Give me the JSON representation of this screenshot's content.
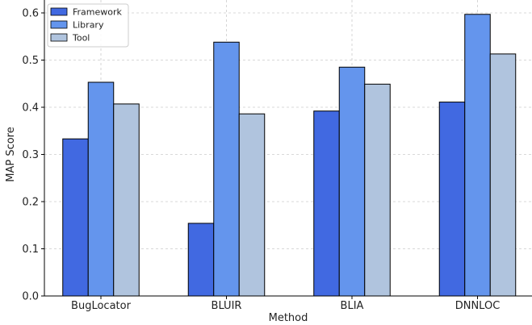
{
  "chart_data": {
    "type": "bar",
    "title": "",
    "xlabel": "Method",
    "ylabel": "MAP Score",
    "categories": [
      "BugLocator",
      "BLUIR",
      "BLIA",
      "DNNLOC"
    ],
    "series": [
      {
        "name": "Framework",
        "color": "#4169e1",
        "values": [
          0.333,
          0.154,
          0.392,
          0.411
        ]
      },
      {
        "name": "Library",
        "color": "#6495ed",
        "values": [
          0.453,
          0.538,
          0.485,
          0.597
        ]
      },
      {
        "name": "Tool",
        "color": "#b0c4de",
        "values": [
          0.407,
          0.386,
          0.449,
          0.513
        ]
      }
    ],
    "ylim": [
      0,
      0.6
    ],
    "yticks": [
      "0.0",
      "0.1",
      "0.2",
      "0.3",
      "0.4",
      "0.5",
      "0.6"
    ],
    "grid": true,
    "legend_position": "top-left"
  }
}
